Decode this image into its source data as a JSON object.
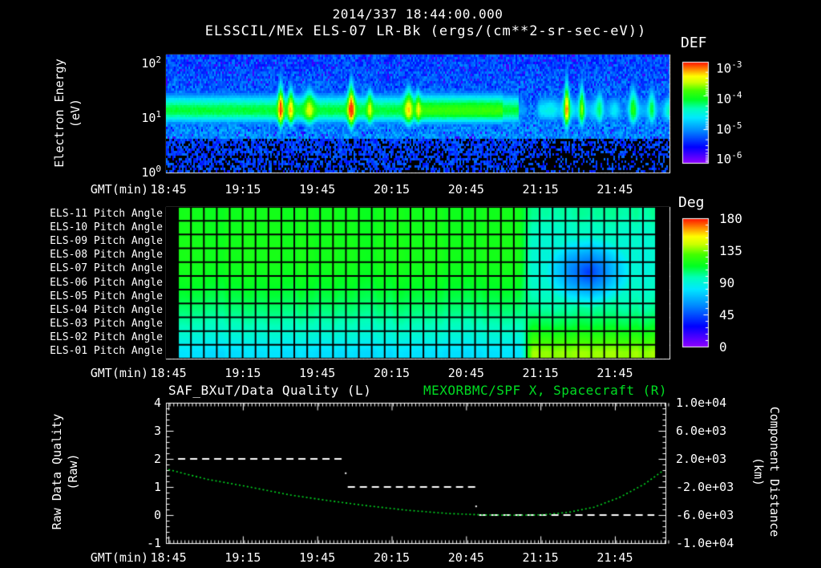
{
  "title": {
    "line1": "2014/337 18:44:00.000",
    "line2": "ELSSCIL/MEx ELS-07 LR-Bk  (ergs/(cm**2-sr-sec-eV))"
  },
  "colors": {
    "background": "#000000",
    "text": "#ffffff",
    "accent_green": "#00dd22",
    "rainbow": [
      [
        0,
        "#9100ff"
      ],
      [
        0.16,
        "#0000ff"
      ],
      [
        0.32,
        "#0088ff"
      ],
      [
        0.45,
        "#00e8ff"
      ],
      [
        0.54,
        "#00ffbb"
      ],
      [
        0.63,
        "#00ff22"
      ],
      [
        0.72,
        "#44ff00"
      ],
      [
        0.8,
        "#ccff00"
      ],
      [
        0.86,
        "#ffff00"
      ],
      [
        0.93,
        "#ff8800"
      ],
      [
        1,
        "#ff1100"
      ]
    ]
  },
  "time_axis": {
    "label": "GMT(min)",
    "ticks": [
      "18:45",
      "19:15",
      "19:45",
      "20:15",
      "20:45",
      "21:15",
      "21:45"
    ],
    "start": "18:44",
    "span_minutes": 203,
    "major_tick_minutes": [
      1,
      31,
      61,
      91,
      121,
      151,
      181
    ],
    "minor_tick_minutes": 1.5
  },
  "panels": {
    "spectrogram": {
      "ylabel_line1": "Electron Energy",
      "ylabel_line2": "(eV)",
      "yticks": [
        "10^2",
        "10^1",
        "10^0"
      ],
      "colorbar": {
        "title": "DEF",
        "ticks": [
          "10^-3",
          "10^-4",
          "10^-5",
          "10^-6"
        ]
      }
    },
    "pitch": {
      "row_labels": [
        "ELS-11 Pitch Angle",
        "ELS-10 Pitch Angle",
        "ELS-09 Pitch Angle",
        "ELS-08 Pitch Angle",
        "ELS-07 Pitch Angle",
        "ELS-06 Pitch Angle",
        "ELS-05 Pitch Angle",
        "ELS-04 Pitch Angle",
        "ELS-03 Pitch Angle",
        "ELS-02 Pitch Angle",
        "ELS-01 Pitch Angle"
      ],
      "colorbar": {
        "title": "Deg",
        "ticks": [
          "180",
          "135",
          "90",
          "45",
          "0"
        ]
      }
    },
    "timeseries": {
      "title_left": "SAF_BXuT/Data Quality (L)",
      "title_right": "MEXORBMC/SPF X, Spacecraft (R)",
      "ylabel_left_line1": "Raw Data Quality",
      "ylabel_left_line2": "(Raw)",
      "ylabel_right_line1": "Component Distance",
      "ylabel_right_line2": "(km)",
      "yticks_left": [
        "4",
        "3",
        "2",
        "1",
        "0",
        "-1"
      ],
      "yticks_right": [
        "1.0e+04",
        "6.0e+03",
        "2.0e+03",
        "-2.0e+03",
        "-6.0e+03",
        "-1.0e+04"
      ]
    }
  },
  "chart_data": [
    {
      "type": "heatmap",
      "name": "electron-energy-spectrogram",
      "title": "ELSSCIL/MEx ELS-07 LR-Bk",
      "units": "ergs/(cm**2-sr-sec-eV)",
      "x_start": "18:44",
      "x_end": "22:07",
      "y_label": "Electron Energy (eV)",
      "y_scale": "log",
      "y_range_ev": [
        1,
        145
      ],
      "z_range": [
        1e-06,
        0.001
      ],
      "band": {
        "center_log_ev": 1.13,
        "sigma_up": 0.26,
        "sigma_down": 0.2,
        "intensity": 0.62,
        "bright_interval_frac": [
          0.5,
          0.67
        ],
        "patchy_after_frac": 0.7
      },
      "streaks": [
        [
          0.228,
          0.42,
          0.004
        ],
        [
          0.248,
          0.3,
          0.004
        ],
        [
          0.285,
          0.22,
          0.007
        ],
        [
          0.368,
          0.45,
          0.005
        ],
        [
          0.405,
          0.22,
          0.004
        ],
        [
          0.482,
          0.28,
          0.006
        ],
        [
          0.5,
          0.18,
          0.004
        ],
        [
          0.796,
          0.48,
          0.004
        ],
        [
          0.826,
          0.38,
          0.004
        ],
        [
          0.862,
          0.2,
          0.005
        ],
        [
          0.928,
          0.3,
          0.006
        ],
        [
          0.965,
          0.26,
          0.005
        ]
      ]
    },
    {
      "type": "heatmap",
      "name": "pitch-angle-panels",
      "rows": [
        "ELS-11",
        "ELS-10",
        "ELS-09",
        "ELS-08",
        "ELS-07",
        "ELS-06",
        "ELS-05",
        "ELS-04",
        "ELS-03",
        "ELS-02",
        "ELS-01"
      ],
      "z_units": "Deg",
      "z_range": [
        0,
        180
      ],
      "row_base_deg": [
        117,
        117,
        118,
        118,
        117,
        114,
        110,
        104,
        97,
        89,
        79
      ],
      "row_right_deg": [
        100,
        95,
        92,
        90,
        90,
        92,
        96,
        101,
        110,
        124,
        138
      ],
      "right_region_start_frac": 0.715,
      "blob": {
        "t_frac": 0.838,
        "row_center": 4.2,
        "t_radius": 0.085,
        "row_radius": 2.6,
        "min_deg": 40
      },
      "no_data": {
        "left_frac": 0.024,
        "right_frac": 0.973
      },
      "grid_columns": 37
    },
    {
      "type": "line",
      "name": "quality-and-spacecraft-x",
      "left_axis": {
        "label": "Raw Data Quality (Raw)",
        "range": [
          -1,
          4
        ]
      },
      "right_axis": {
        "label": "Component Distance (km)",
        "range": [
          -10000,
          10000
        ]
      },
      "series": [
        {
          "name": "SAF_BXuT/Data Quality (L)",
          "axis": "left",
          "style": "dashed",
          "color": "#ffffff",
          "segments": [
            {
              "value": 2,
              "t0": 0.024,
              "t1": 0.358
            },
            {
              "value": 1,
              "t0": 0.361,
              "t1": 0.619
            },
            {
              "value": 0,
              "t0": 0.622,
              "t1": 0.97
            }
          ],
          "transition_dots": [
            [
              0.357,
              1.49
            ],
            [
              0.616,
              0.31
            ]
          ]
        },
        {
          "name": "MEXORBMC/SPF X, Spacecraft (R)",
          "axis": "right",
          "style": "dotted",
          "color": "#00dd22",
          "t": [
            0.005,
            0.08,
            0.16,
            0.245,
            0.32,
            0.4,
            0.48,
            0.56,
            0.63,
            0.7,
            0.75,
            0.8,
            0.85,
            0.9,
            0.95,
            0.985
          ],
          "km": [
            480,
            -880,
            -1920,
            -3120,
            -3920,
            -4680,
            -5320,
            -5780,
            -5980,
            -6040,
            -5960,
            -5600,
            -4880,
            -3520,
            -1600,
            200
          ]
        }
      ]
    }
  ]
}
